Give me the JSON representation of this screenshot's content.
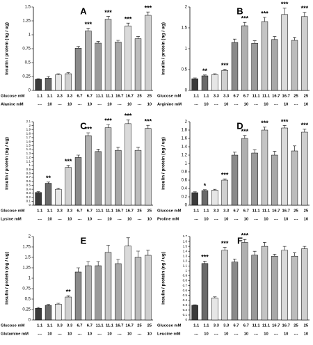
{
  "chart_data": [
    {
      "type": "bar",
      "title": "A",
      "y_label": "insulin / protein (ng / ug)",
      "row_labels": [
        "Glucose mM",
        "Alanine mM"
      ],
      "categories": [
        "1.1",
        "1.1",
        "3.3",
        "3.3",
        "6.7",
        "6.7",
        "11.1",
        "11.1",
        "16.7",
        "16.7",
        "25",
        "25"
      ],
      "second_row": [
        "---",
        "10",
        "---",
        "10",
        "---",
        "10",
        "---",
        "10",
        "---",
        "10",
        "---",
        "10"
      ],
      "values": [
        0.2,
        0.22,
        0.28,
        0.3,
        0.76,
        1.07,
        0.85,
        1.28,
        0.87,
        1.16,
        0.93,
        1.35
      ],
      "errors": [
        0.01,
        0.03,
        0.02,
        0.02,
        0.03,
        0.05,
        0.03,
        0.05,
        0.03,
        0.05,
        0.04,
        0.06
      ],
      "stars": [
        null,
        null,
        null,
        null,
        null,
        "***",
        null,
        "***",
        null,
        "***",
        null,
        "***"
      ],
      "colors": [
        "#3a3a3a",
        "#6a6a6a",
        "#e6e6e6",
        "#d0d0d0",
        "#8a8a8a",
        "#b0b0b0",
        "#9a9a9a",
        "#c4c4c4",
        "#a8a8a8",
        "#dadada",
        "#bcbcbc",
        "#cfcfcf"
      ],
      "ylim": [
        0,
        1.5
      ],
      "yticks": [
        0,
        0.25,
        0.5,
        0.75,
        1,
        1.25,
        1.5
      ]
    },
    {
      "type": "bar",
      "title": "B",
      "y_label": "insulin / protein (ng / ug)",
      "row_labels": [
        "Glucose mM",
        "Arginine mM"
      ],
      "categories": [
        "1.1",
        "1.1",
        "3.3",
        "3.3",
        "6.7",
        "6.7",
        "11.1",
        "11.1",
        "16.7",
        "16.7",
        "25",
        "25"
      ],
      "second_row": [
        "---",
        "10",
        "---",
        "10",
        "---",
        "10",
        "---",
        "10",
        "---",
        "10",
        "---",
        "10"
      ],
      "values": [
        0.28,
        0.35,
        0.38,
        0.48,
        1.15,
        1.55,
        1.13,
        1.65,
        1.22,
        1.82,
        1.2,
        1.77
      ],
      "errors": [
        0.02,
        0.02,
        0.02,
        0.03,
        0.08,
        0.08,
        0.06,
        0.1,
        0.07,
        0.15,
        0.07,
        0.1
      ],
      "stars": [
        null,
        "**",
        null,
        "***",
        null,
        "***",
        null,
        "***",
        null,
        "***",
        null,
        "***"
      ],
      "colors": [
        "#3a3a3a",
        "#6a6a6a",
        "#e6e6e6",
        "#d0d0d0",
        "#8a8a8a",
        "#b0b0b0",
        "#9a9a9a",
        "#c4c4c4",
        "#a8a8a8",
        "#dadada",
        "#bcbcbc",
        "#cfcfcf"
      ],
      "ylim": [
        0,
        2
      ],
      "yticks": [
        0,
        0.5,
        1,
        1.5,
        2
      ]
    },
    {
      "type": "bar",
      "title": "C",
      "y_label": "insulin / protein (ng / ug)",
      "row_labels": [
        "Glucose mM",
        "Lysine mM"
      ],
      "categories": [
        "1.1",
        "1.1",
        "3.3",
        "3.3",
        "6.7",
        "6.7",
        "11.1",
        "11.1",
        "16.7",
        "16.7",
        "25",
        "25"
      ],
      "second_row": [
        "---",
        "10",
        "---",
        "10",
        "---",
        "10",
        "---",
        "10",
        "---",
        "10",
        "---",
        "10"
      ],
      "values": [
        0.32,
        0.55,
        0.4,
        0.95,
        1.2,
        1.75,
        1.35,
        1.95,
        1.38,
        2.05,
        1.38,
        1.93
      ],
      "errors": [
        0.02,
        0.03,
        0.03,
        0.05,
        0.06,
        0.07,
        0.06,
        0.08,
        0.08,
        0.1,
        0.08,
        0.08
      ],
      "stars": [
        null,
        "**",
        null,
        "***",
        null,
        "***",
        null,
        "***",
        null,
        "***",
        null,
        "***"
      ],
      "colors": [
        "#3a3a3a",
        "#6a6a6a",
        "#e6e6e6",
        "#d0d0d0",
        "#8a8a8a",
        "#b0b0b0",
        "#9a9a9a",
        "#c4c4c4",
        "#a8a8a8",
        "#dadada",
        "#bcbcbc",
        "#cfcfcf"
      ],
      "ylim": [
        0,
        2.1
      ],
      "yticks": [
        0,
        0.1,
        0.2,
        0.3,
        0.4,
        0.5,
        0.6,
        0.7,
        0.8,
        0.9,
        1,
        1.1,
        1.2,
        1.3,
        1.4,
        1.5,
        1.6,
        1.7,
        1.8,
        1.9,
        2,
        2.1
      ]
    },
    {
      "type": "bar",
      "title": "D",
      "y_label": "insulin / protein (ng / ug)",
      "row_labels": [
        "Glucose mM",
        "Proline mM"
      ],
      "categories": [
        "1.1",
        "1.1",
        "3.3",
        "3.3",
        "6.7",
        "6.7",
        "11.1",
        "11.1",
        "16.7",
        "16.7",
        "25",
        "25"
      ],
      "second_row": [
        "---",
        "10",
        "---",
        "10",
        "---",
        "10",
        "---",
        "10",
        "---",
        "10",
        "---",
        "10"
      ],
      "values": [
        0.3,
        0.35,
        0.36,
        0.6,
        1.2,
        1.6,
        1.25,
        1.8,
        1.2,
        1.85,
        1.3,
        1.75
      ],
      "errors": [
        0.02,
        0.02,
        0.02,
        0.03,
        0.07,
        0.07,
        0.08,
        0.07,
        0.09,
        0.06,
        0.12,
        0.07
      ],
      "stars": [
        null,
        "*",
        null,
        "***",
        null,
        "***",
        null,
        "***",
        null,
        "***",
        null,
        "***"
      ],
      "colors": [
        "#3a3a3a",
        "#6a6a6a",
        "#e6e6e6",
        "#d0d0d0",
        "#8a8a8a",
        "#b0b0b0",
        "#9a9a9a",
        "#c4c4c4",
        "#a8a8a8",
        "#dadada",
        "#bcbcbc",
        "#cfcfcf"
      ],
      "ylim": [
        0,
        2
      ],
      "yticks": [
        0,
        0.2,
        0.4,
        0.6,
        0.8,
        1,
        1.2,
        1.4,
        1.6,
        1.8,
        2
      ]
    },
    {
      "type": "bar",
      "title": "E",
      "y_label": "insulin / protein (ng / ug)",
      "row_labels": [
        "Glucose mM",
        "Glutamine mM"
      ],
      "categories": [
        "1.1",
        "1.1",
        "3.3",
        "3.3",
        "6.7",
        "6.7",
        "11.1",
        "11.1",
        "16.7",
        "16.7",
        "25",
        "25"
      ],
      "second_row": [
        "---",
        "10",
        "---",
        "10",
        "---",
        "10",
        "---",
        "10",
        "---",
        "10",
        "---",
        "10"
      ],
      "values": [
        0.28,
        0.35,
        0.38,
        0.55,
        1.15,
        1.3,
        1.3,
        1.62,
        1.35,
        1.77,
        1.5,
        1.55
      ],
      "errors": [
        0.02,
        0.02,
        0.02,
        0.03,
        0.1,
        0.1,
        0.1,
        0.17,
        0.1,
        0.2,
        0.15,
        0.12
      ],
      "stars": [
        null,
        null,
        null,
        "**",
        null,
        null,
        null,
        null,
        null,
        null,
        null,
        null
      ],
      "colors": [
        "#3a3a3a",
        "#6a6a6a",
        "#e6e6e6",
        "#d0d0d0",
        "#8a8a8a",
        "#b0b0b0",
        "#9a9a9a",
        "#c4c4c4",
        "#a8a8a8",
        "#dadada",
        "#bcbcbc",
        "#cfcfcf"
      ],
      "ylim": [
        0,
        2
      ],
      "yticks": [
        0,
        0.25,
        0.5,
        0.75,
        1,
        1.25,
        1.5,
        1.75,
        2
      ]
    },
    {
      "type": "bar",
      "title": "F",
      "y_label": "insulin / protein (ng / ug)",
      "row_labels": [
        "Glucose mM",
        "Leucine mM"
      ],
      "categories": [
        "1.1",
        "1.1",
        "3.3",
        "3.3",
        "6.7",
        "6.7",
        "11.1",
        "11.1",
        "16.7",
        "16.7",
        "25",
        "25"
      ],
      "second_row": [
        "---",
        "10",
        "---",
        "10",
        "---",
        "10",
        "---",
        "10",
        "---",
        "10",
        "---",
        "10"
      ],
      "values": [
        0.3,
        1.15,
        0.45,
        1.42,
        1.18,
        1.58,
        1.32,
        1.5,
        1.3,
        1.42,
        1.3,
        1.45
      ],
      "errors": [
        0.01,
        0.05,
        0.02,
        0.06,
        0.06,
        0.06,
        0.08,
        0.08,
        0.04,
        0.08,
        0.07,
        0.05
      ],
      "stars": [
        null,
        "***",
        null,
        "***",
        null,
        "***",
        null,
        null,
        null,
        null,
        null,
        null
      ],
      "colors": [
        "#3a3a3a",
        "#6a6a6a",
        "#e6e6e6",
        "#d0d0d0",
        "#8a8a8a",
        "#b0b0b0",
        "#9a9a9a",
        "#c4c4c4",
        "#a8a8a8",
        "#dadada",
        "#bcbcbc",
        "#cfcfcf"
      ],
      "ylim": [
        0,
        1.7
      ],
      "yticks": [
        0,
        0.1,
        0.2,
        0.3,
        0.4,
        0.5,
        0.6,
        0.7,
        0.8,
        0.9,
        1,
        1.1,
        1.2,
        1.3,
        1.4,
        1.5,
        1.6,
        1.7
      ]
    }
  ]
}
